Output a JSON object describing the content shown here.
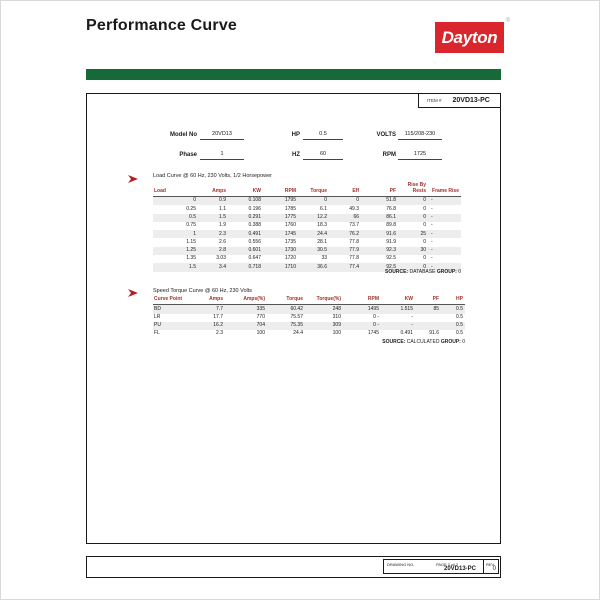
{
  "header": {
    "title": "Performance Curve",
    "logo_text": "Dayton",
    "logo_registered": "®"
  },
  "colors": {
    "green_bar": "#166939",
    "brand_red": "#D8262C",
    "table_header_red": "#A0302C",
    "row_stripe": "#EDEDED"
  },
  "item_box": {
    "label": "ITEM #",
    "value": "20VD13-PC"
  },
  "motor_info": {
    "model_label": "Model No",
    "model_value": "20VD13",
    "hp_label": "HP",
    "hp_value": "0.5",
    "volts_label": "VOLTS",
    "volts_value": "115/208-230",
    "phase_label": "Phase",
    "phase_value": "1",
    "hz_label": "HZ",
    "hz_value": "60",
    "rpm_label": "RPM",
    "rpm_value": "1725"
  },
  "load_curve": {
    "title": "Load Curve @ 60 Hz, 230 Volts, 1/2 Horsepower",
    "columns": [
      "Load",
      "Amps",
      "KW",
      "RPM",
      "Torque",
      "Eff",
      "PF",
      "Rise By\nResis",
      "Frame Rise"
    ],
    "rows": [
      [
        "0",
        "0.9",
        "0.108",
        "1795",
        "0",
        "0",
        "51.8",
        "0",
        "-"
      ],
      [
        "0.25",
        "1.1",
        "0.196",
        "1785",
        "6.1",
        "49.3",
        "76.8",
        "0",
        "-"
      ],
      [
        "0.5",
        "1.5",
        "0.291",
        "1775",
        "12.2",
        "66",
        "86.1",
        "0",
        "-"
      ],
      [
        "0.75",
        "1.9",
        "0.388",
        "1760",
        "18.3",
        "73.7",
        "89.8",
        "0",
        "-"
      ],
      [
        "1",
        "2.3",
        "0.491",
        "1745",
        "24.4",
        "76.2",
        "91.6",
        "25",
        "-"
      ],
      [
        "1.15",
        "2.6",
        "0.556",
        "1735",
        "28.1",
        "77.8",
        "91.9",
        "0",
        "-"
      ],
      [
        "1.25",
        "2.8",
        "0.601",
        "1730",
        "30.5",
        "77.9",
        "92.3",
        "30",
        "-"
      ],
      [
        "1.35",
        "3.03",
        "0.647",
        "1720",
        "33",
        "77.8",
        "92.5",
        "0",
        "-"
      ],
      [
        "1.5",
        "3.4",
        "0.718",
        "1710",
        "36.6",
        "77.4",
        "92.5",
        "0",
        "-"
      ]
    ],
    "source_label": "SOURCE:",
    "source_value": "DATABASE",
    "group_label": "GROUP:",
    "group_value": "0"
  },
  "speed_torque": {
    "title": "Speed Torque Curve @ 60 Hz, 230 Volts",
    "columns": [
      "Curve Point",
      "Amps",
      "Amps(%)",
      "Torque",
      "Torque(%)",
      "RPM",
      "KW",
      "PF",
      "HP"
    ],
    "rows": [
      [
        "BD",
        "7.7",
        "335",
        "60.42",
        "248",
        "1495",
        "1.515",
        "85",
        "0.5"
      ],
      [
        "LR",
        "17.7",
        "770",
        "75.57",
        "310",
        "0 -",
        "-",
        "",
        "0.5"
      ],
      [
        "PU",
        "16.2",
        "704",
        "75.35",
        "309",
        "0 -",
        "-",
        "",
        "0.5"
      ],
      [
        "FL",
        "2.3",
        "100",
        "24.4",
        "100",
        "1745",
        "0.491",
        "91.6",
        "0.5"
      ]
    ],
    "source_label": "SOURCE:",
    "source_value": "CALCULATED",
    "group_label": "GROUP:",
    "group_value": "0"
  },
  "footer": {
    "drawing_no_label": "DRAWING NO.",
    "page_label": "PAGE 2 of 2",
    "drawing_no_value": "20VD13-PC",
    "rev_label": "REV",
    "rev_value": "0"
  }
}
